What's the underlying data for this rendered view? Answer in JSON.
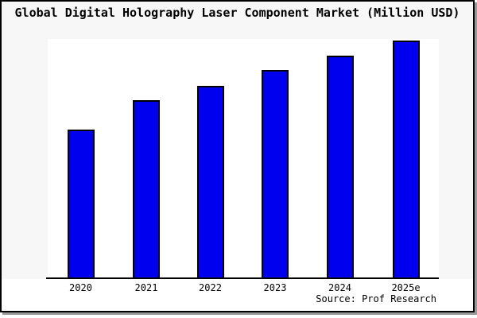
{
  "source": "Source: Prof Research",
  "colors": {
    "figure_bg": "#f7f7f7",
    "plot_bg": "#ffffff",
    "frame_border": "#000000",
    "shadow": "#999999",
    "bar_fill": "#0000ee",
    "bar_border": "#000000",
    "text": "#000000"
  },
  "chart_data": {
    "type": "bar",
    "title": "Global Digital Holography Laser Component Market (Million USD)",
    "categories": [
      "2020",
      "2021",
      "2022",
      "2023",
      "2024",
      "2025e"
    ],
    "values": [
      62.7,
      75.0,
      81.0,
      87.5,
      93.5,
      100.0
    ],
    "xlabel": "",
    "ylabel": "",
    "ylim": [
      0,
      100.7
    ],
    "y_axis_labels_shown": false,
    "value_note": "y-axis is unlabeled in the image; values are relative bar heights normalized so 2025e = 100",
    "grid": false,
    "legend": "none"
  }
}
